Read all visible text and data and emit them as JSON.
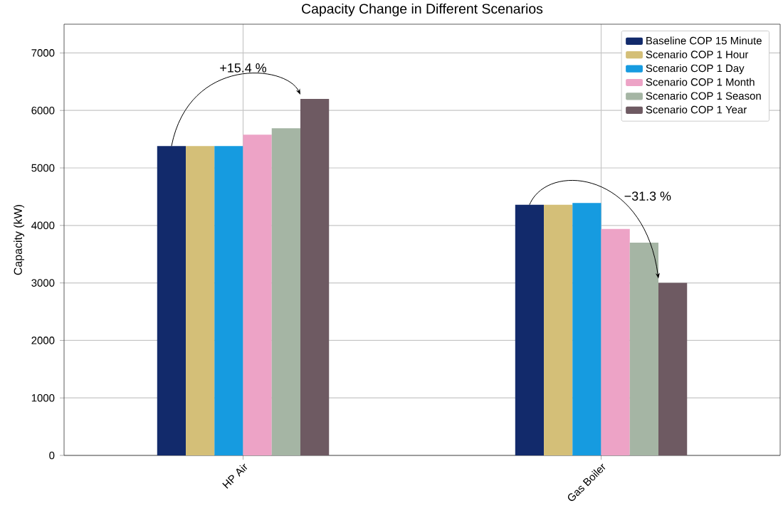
{
  "chart_data": {
    "type": "bar",
    "title": "Capacity Change in Different Scenarios",
    "ylabel": "Capacity (kW)",
    "categories": [
      "HP Air",
      "Gas Boiler"
    ],
    "series": [
      {
        "name": "Baseline COP 15 Minute",
        "color": "#122a6b",
        "values": [
          5380,
          4360
        ]
      },
      {
        "name": "Scenario COP 1 Hour",
        "color": "#d4bf78",
        "values": [
          5380,
          4360
        ]
      },
      {
        "name": "Scenario COP 1 Day",
        "color": "#169be0",
        "values": [
          5380,
          4390
        ]
      },
      {
        "name": "Scenario COP 1 Month",
        "color": "#eda3c6",
        "values": [
          5580,
          3940
        ]
      },
      {
        "name": "Scenario COP 1 Season",
        "color": "#a5b5a4",
        "values": [
          5690,
          3700
        ]
      },
      {
        "name": "Scenario COP 1 Year",
        "color": "#6e5a62",
        "values": [
          6200,
          3000
        ]
      }
    ],
    "ylim": [
      0,
      7500
    ],
    "yticks": [
      0,
      1000,
      2000,
      3000,
      4000,
      5000,
      6000,
      7000
    ],
    "grid": true,
    "legend": "top right",
    "annotations": [
      "+15.4 %",
      "−31.3 %"
    ]
  }
}
